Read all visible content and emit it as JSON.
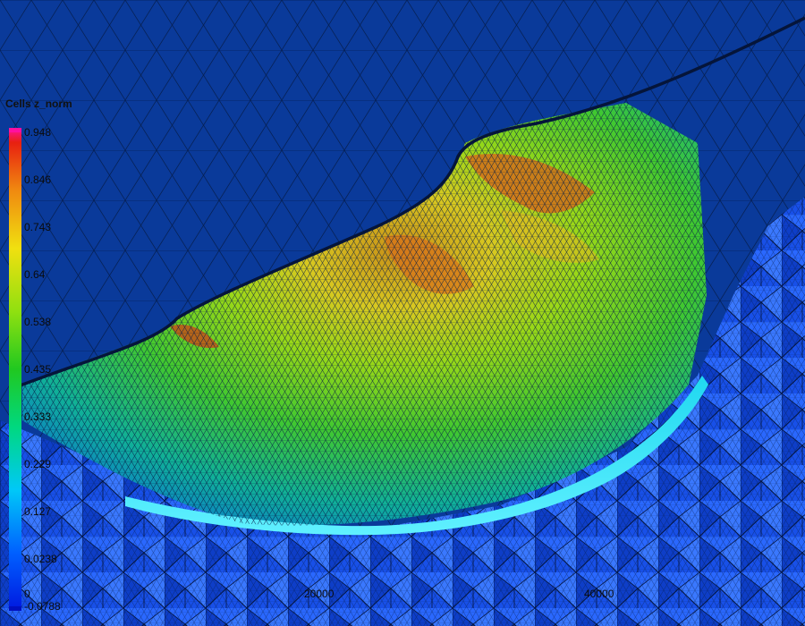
{
  "legend": {
    "title": "Cells z_norm",
    "ticks": [
      "0.948",
      "0.846",
      "0.743",
      "0.64",
      "0.538",
      "0.435",
      "0.333",
      "0.229",
      "0.127",
      "0.0238",
      "-0.0788"
    ]
  },
  "axis": {
    "y_origin": "0",
    "x_ticks": [
      "20000",
      "40000"
    ]
  },
  "colors": {
    "background": "#0a3a9a",
    "wireframe": "#051a45",
    "colormap": [
      "#0022ff",
      "#00a0ff",
      "#00e0e8",
      "#10c830",
      "#8adf10",
      "#e8e010",
      "#f09a10",
      "#e83010",
      "#ff1090"
    ]
  }
}
